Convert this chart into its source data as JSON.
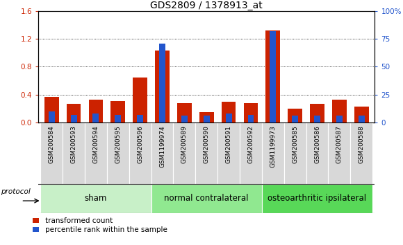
{
  "title": "GDS2809 / 1378913_at",
  "categories": [
    "GSM200584",
    "GSM200593",
    "GSM200594",
    "GSM200595",
    "GSM200596",
    "GSM1199974",
    "GSM200589",
    "GSM200590",
    "GSM200591",
    "GSM200592",
    "GSM1199973",
    "GSM200585",
    "GSM200586",
    "GSM200587",
    "GSM200588"
  ],
  "red_values": [
    0.37,
    0.27,
    0.33,
    0.31,
    0.65,
    1.03,
    0.28,
    0.15,
    0.3,
    0.28,
    1.32,
    0.2,
    0.27,
    0.33,
    0.23
  ],
  "blue_percentile": [
    10,
    7,
    8,
    7,
    7,
    71,
    6,
    6,
    8,
    7,
    82,
    6,
    6,
    6,
    6
  ],
  "ylim_left": [
    0,
    1.6
  ],
  "ylim_right": [
    0,
    100
  ],
  "yticks_left": [
    0,
    0.4,
    0.8,
    1.2,
    1.6
  ],
  "yticks_right": [
    0,
    25,
    50,
    75,
    100
  ],
  "ytick_labels_right": [
    "0",
    "25",
    "50",
    "75",
    "100%"
  ],
  "groups": [
    {
      "label": "sham",
      "start": 0,
      "end": 4,
      "color": "#c8f0c8"
    },
    {
      "label": "normal contralateral",
      "start": 5,
      "end": 9,
      "color": "#90e890"
    },
    {
      "label": "osteoarthritic ipsilateral",
      "start": 10,
      "end": 14,
      "color": "#58d858"
    }
  ],
  "protocol_label": "protocol",
  "legend_red": "transformed count",
  "legend_blue": "percentile rank within the sample",
  "red_bar_width": 0.65,
  "blue_bar_width": 0.28,
  "red_color": "#cc2200",
  "blue_color": "#2255cc",
  "title_fontsize": 10,
  "tick_fontsize": 6.5,
  "group_label_fontsize": 8.5,
  "background_color": "#ffffff",
  "left_tick_color": "#cc2200",
  "right_tick_color": "#2255cc",
  "gray_box_color": "#d8d8d8"
}
